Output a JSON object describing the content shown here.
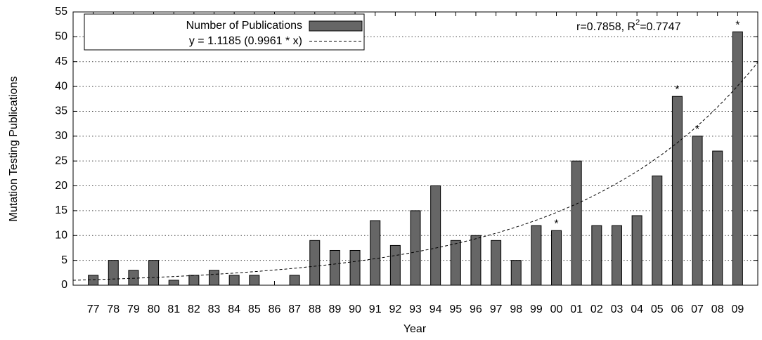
{
  "chart_data": {
    "type": "bar",
    "x_label": "Year",
    "y_label": "Mutation Testing Publications",
    "categories": [
      "77",
      "78",
      "79",
      "80",
      "81",
      "82",
      "83",
      "84",
      "85",
      "86",
      "87",
      "88",
      "89",
      "90",
      "91",
      "92",
      "93",
      "94",
      "95",
      "96",
      "97",
      "98",
      "99",
      "00",
      "01",
      "02",
      "03",
      "04",
      "05",
      "06",
      "07",
      "08",
      "09"
    ],
    "series": [
      {
        "name": "Number of Publications",
        "color": "#666666",
        "values": [
          2,
          5,
          3,
          5,
          1,
          2,
          3,
          2,
          2,
          0,
          2,
          9,
          7,
          7,
          13,
          8,
          15,
          20,
          9,
          10,
          9,
          5,
          12,
          11,
          25,
          12,
          12,
          14,
          22,
          38,
          30,
          27,
          51
        ]
      }
    ],
    "trend": {
      "label": "y = 1.1185  (0.9961 * x)",
      "base": 1.1185,
      "scale": 0.9961
    },
    "annotations": [
      {
        "category": "00",
        "text": "*"
      },
      {
        "category": "06",
        "text": "*"
      },
      {
        "category": "07",
        "text": "*"
      },
      {
        "category": "09",
        "text": "*"
      }
    ],
    "stats": {
      "main": "r=0.7858, R",
      "sup": "2",
      "rest": "=0.7747"
    },
    "ylim": [
      0,
      55
    ],
    "yticks": [
      0,
      5,
      10,
      15,
      20,
      25,
      30,
      35,
      40,
      45,
      50,
      55
    ],
    "grid": true
  }
}
